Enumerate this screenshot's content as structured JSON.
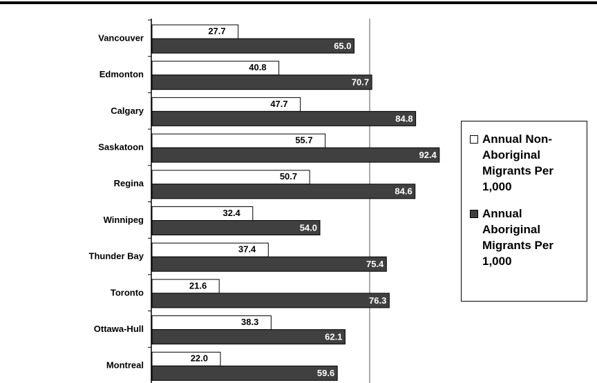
{
  "chart_data": {
    "type": "hbar",
    "categories": [
      "Vancouver",
      "Edmonton",
      "Calgary",
      "Saskatoon",
      "Regina",
      "Winnipeg",
      "Thunder Bay",
      "Toronto",
      "Ottawa-Hull",
      "Montreal"
    ],
    "series": [
      {
        "name": "Annual Non-Aboriginal Migrants Per 1,000",
        "color": "#ffffff",
        "values": [
          27.7,
          40.8,
          47.7,
          55.7,
          50.7,
          32.4,
          37.4,
          21.6,
          38.3,
          22.0
        ],
        "value_labels": [
          "27.7",
          "40.8",
          "47.7",
          "55.7",
          "50.7",
          "32.4",
          "37.4",
          "21.6",
          "38.3",
          "22.0"
        ]
      },
      {
        "name": "Annual Aboriginal Migrants Per 1,000",
        "color": "#404040",
        "values": [
          65.0,
          70.7,
          84.8,
          92.4,
          84.6,
          54.0,
          75.4,
          76.3,
          62.1,
          59.6
        ],
        "value_labels": [
          "65.0",
          "70.7",
          "84.8",
          "92.4",
          "84.6",
          "54.0",
          "75.4",
          "76.3",
          "62.1",
          "59.6"
        ]
      }
    ],
    "xlim": [
      0,
      140
    ],
    "xticks": [
      70
    ],
    "show_xtick_labels": false,
    "grid": true,
    "legend": "right"
  }
}
